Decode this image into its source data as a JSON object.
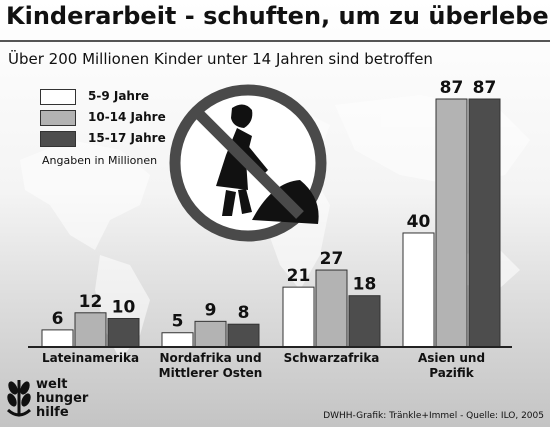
{
  "chart_data": {
    "type": "bar",
    "title": "Kinderarbeit - schuften, um zu überleben",
    "subtitle": "Über 200 Millionen Kinder unter 14 Jahren sind betroffen",
    "categories": [
      "Lateinamerika",
      "Nordafrika und Mittlerer Osten",
      "Schwarzafrika",
      "Asien und Pazifik"
    ],
    "series": [
      {
        "name": "5-9 Jahre",
        "values": [
          6,
          5,
          21,
          40
        ],
        "color": "#ffffff"
      },
      {
        "name": "10-14 Jahre",
        "values": [
          12,
          9,
          27,
          87
        ],
        "color": "#b3b3b3"
      },
      {
        "name": "15-17 Jahre",
        "values": [
          10,
          8,
          18,
          87
        ],
        "color": "#4d4d4d"
      }
    ],
    "unit_note": "Angaben in Millionen",
    "ylim": [
      0,
      87
    ],
    "legend_position": "top-left",
    "source": "DWHH-Grafik: Tränkle+Immel - Quelle: ILO, 2005"
  },
  "logo": {
    "name": "welt hunger hilfe",
    "lines": [
      "welt",
      "hunger",
      "hilfe"
    ]
  }
}
